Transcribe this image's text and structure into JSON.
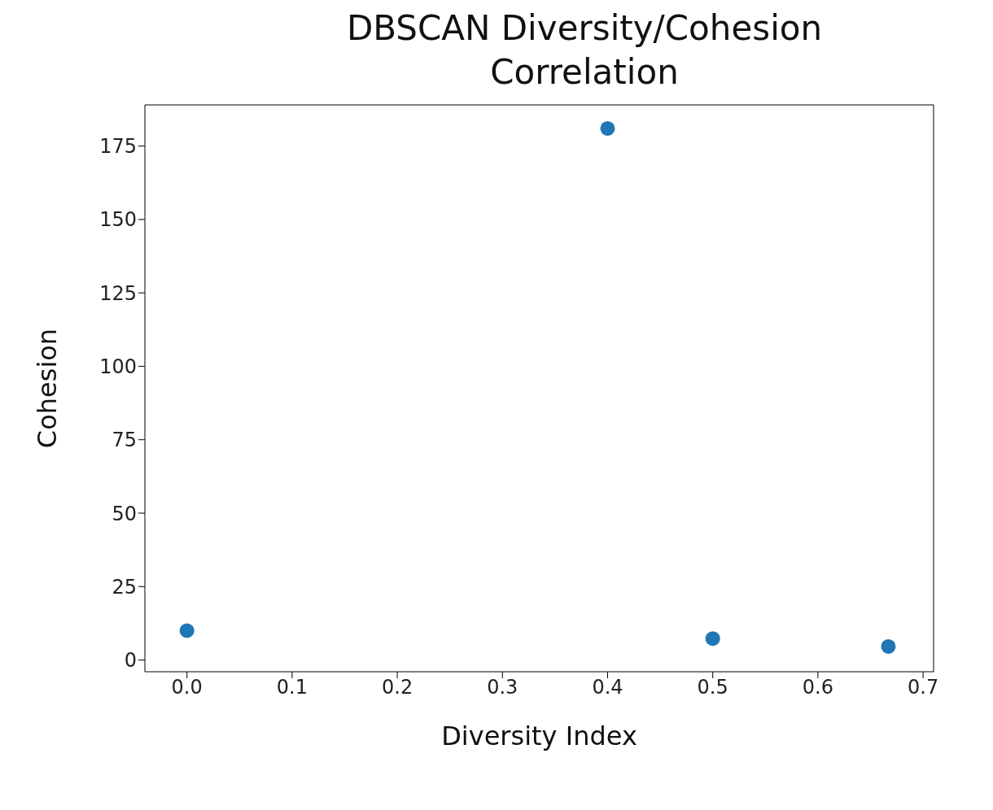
{
  "chart_data": {
    "type": "scatter",
    "title": "DBSCAN Diversity/Cohesion Correlation",
    "xlabel": "Diversity Index",
    "ylabel": "Cohesion",
    "x": [
      0,
      0.4,
      0.5,
      0.667
    ],
    "series": [
      {
        "color": "#1f77b4",
        "values": [
          10,
          181,
          7.3,
          4.6
        ]
      }
    ],
    "xlim": [
      -0.04,
      0.71
    ],
    "xticks": [
      {
        "value": 0,
        "label": "0.0"
      },
      {
        "value": 0.1,
        "label": "0.1"
      },
      {
        "value": 0.2,
        "label": "0.2"
      },
      {
        "value": 0.3,
        "label": "0.3"
      },
      {
        "value": 0.4,
        "label": "0.4"
      },
      {
        "value": 0.5,
        "label": "0.5"
      },
      {
        "value": 0.6,
        "label": "0.6"
      },
      {
        "value": 0.7,
        "label": "0.7"
      }
    ],
    "ylim": [
      -4,
      189
    ],
    "yticks": [
      0,
      25,
      50,
      75,
      100,
      125,
      150,
      175
    ],
    "marker": "circle",
    "grid": false
  }
}
